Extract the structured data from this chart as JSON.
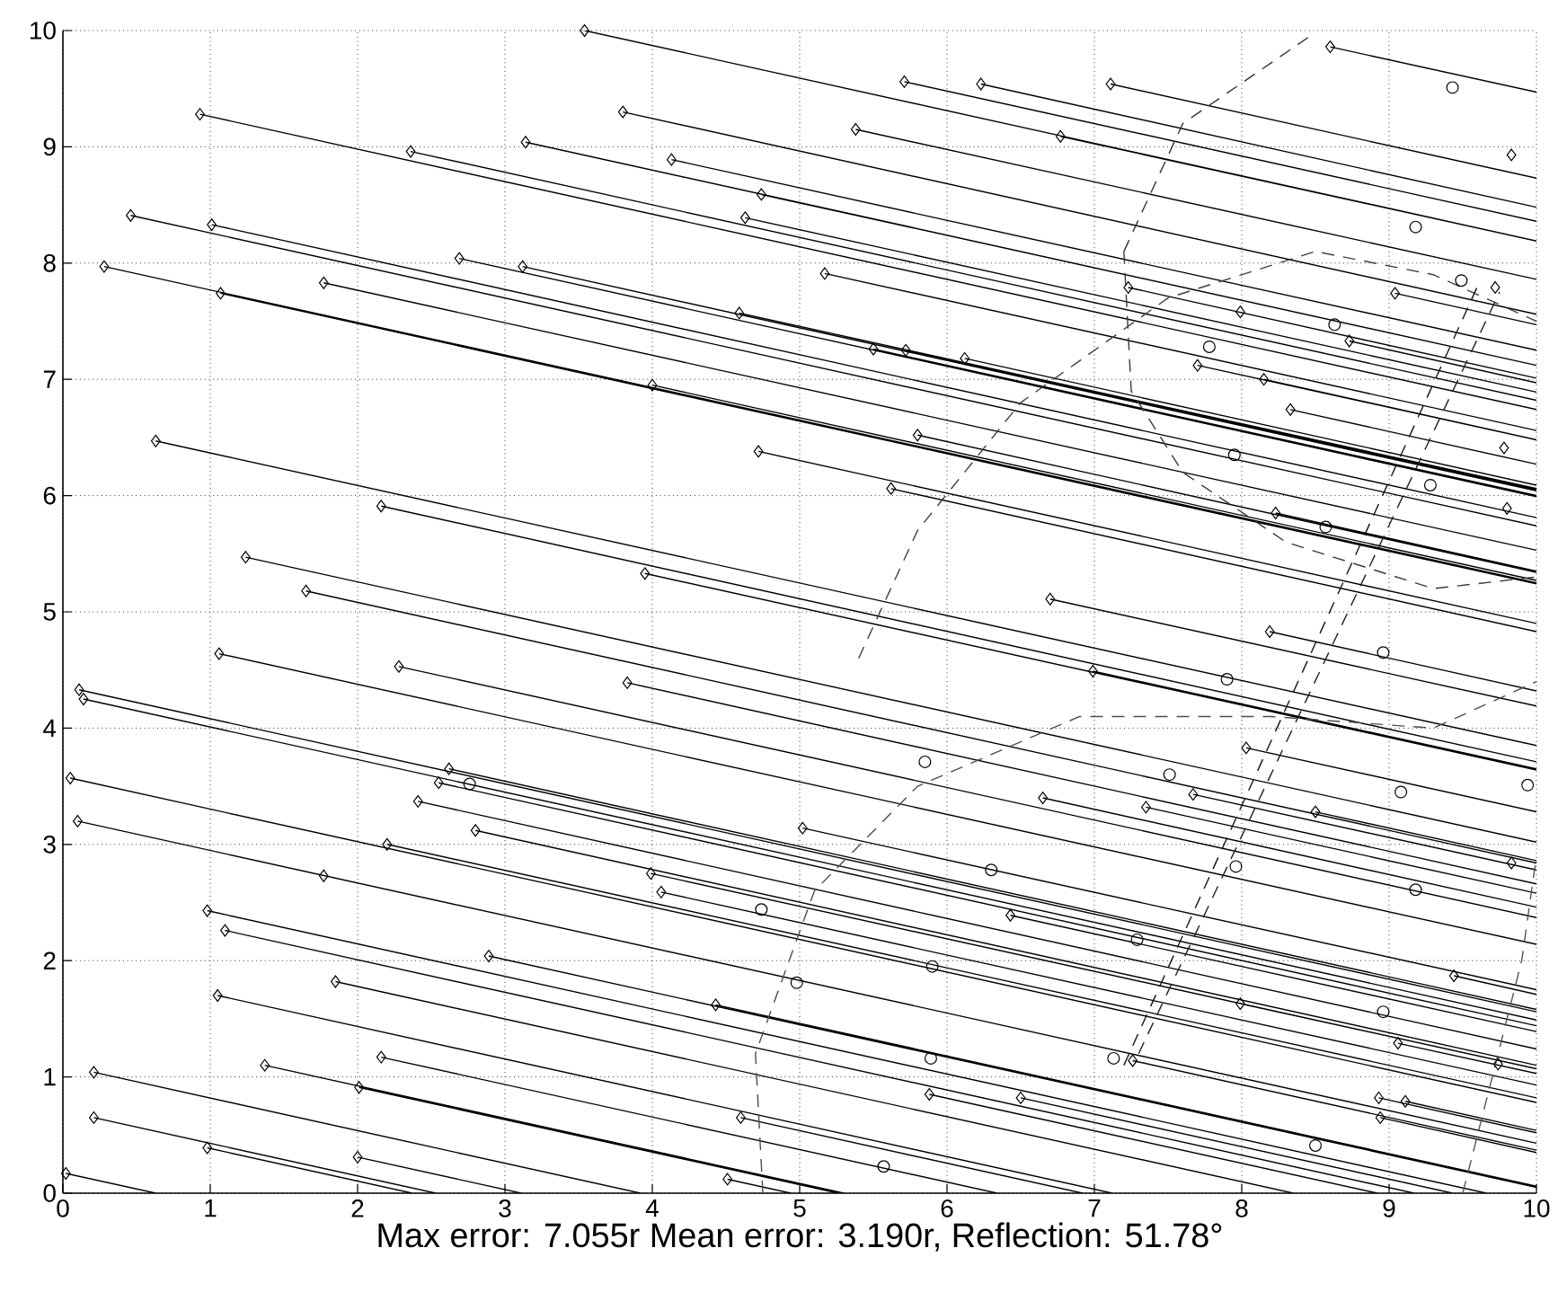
{
  "chart_data": {
    "type": "line",
    "xlabel": "Max error: 7.055r Mean error: 3.190r, Reflection: 51.78°",
    "xlim": [
      0,
      10
    ],
    "ylim": [
      0,
      10
    ],
    "xticks": [
      0,
      1,
      2,
      3,
      4,
      5,
      6,
      7,
      8,
      9,
      10
    ],
    "yticks": [
      0,
      1,
      2,
      3,
      4,
      5,
      6,
      7,
      8,
      9,
      10
    ],
    "grid": true,
    "series": [
      {
        "color": "#000000",
        "line_style": "solid",
        "x": [
          3.54,
          10,
          null,
          0.93,
          10,
          null,
          2.36,
          10,
          null,
          3.14,
          10,
          null,
          3.8,
          10,
          null,
          4.13,
          10,
          null,
          4.74,
          10,
          null,
          4.63,
          10,
          null,
          0.46,
          10,
          null,
          1.01,
          10,
          null,
          0.28,
          10,
          null,
          1.07,
          10,
          null,
          1.77,
          10,
          null,
          2.69,
          10,
          null,
          3.12,
          10,
          null,
          4.59,
          10,
          null,
          4.0,
          10,
          null,
          4.72,
          10,
          null,
          0.63,
          10,
          null,
          2.16,
          10,
          null,
          3.95,
          10,
          null,
          1.24,
          10,
          null,
          1.65,
          10,
          null,
          8.6,
          10,
          null,
          5.71,
          10,
          null,
          6.23,
          10,
          null,
          7.11,
          10,
          null,
          5.38,
          10,
          null,
          6.77,
          10,
          null,
          5.17,
          10,
          null,
          7.23,
          10,
          null,
          9.04,
          10,
          null,
          8.73,
          10,
          null,
          5.5,
          10,
          null,
          5.72,
          10,
          null,
          6.12,
          10,
          null,
          7.7,
          10,
          null,
          8.15,
          10,
          null,
          8.33,
          10,
          null,
          5.8,
          10,
          null,
          5.62,
          10,
          null,
          8.23,
          10,
          null,
          6.7,
          10,
          null,
          8.19,
          10,
          null,
          1.06,
          10,
          null,
          2.28,
          10,
          null,
          3.83,
          10,
          null,
          0.11,
          10,
          null,
          0.14,
          10,
          null,
          2.62,
          10,
          null,
          2.55,
          10,
          null,
          2.41,
          10,
          null,
          2.8,
          10,
          null,
          0.05,
          10,
          null,
          0.1,
          10,
          null,
          2.2,
          10,
          null,
          3.99,
          10,
          null,
          4.06,
          10,
          null,
          0.98,
          9.66,
          null,
          1.1,
          9.17,
          null,
          2.89,
          10,
          null,
          1.85,
          8.35,
          null,
          4.43,
          10,
          null,
          1.05,
          7.12,
          null,
          0.21,
          3.92,
          null,
          1.37,
          5.3,
          null,
          2.16,
          6.34,
          null,
          2.01,
          5.26,
          null,
          0.21,
          2.53,
          null,
          0.98,
          2.37,
          null,
          2.0,
          3.11,
          null,
          4.6,
          6.92,
          null,
          4.51,
          4.94,
          null,
          0.02,
          0.63,
          null,
          6.99,
          10,
          null,
          8.03,
          10,
          null,
          7.67,
          10,
          null,
          7.35,
          10,
          null,
          6.65,
          10,
          null,
          8.5,
          10,
          null,
          5.02,
          10,
          null,
          6.43,
          10,
          null,
          9.44,
          10,
          null,
          7.99,
          10,
          null,
          9.06,
          10,
          null,
          7.26,
          10,
          null,
          5.88,
          8.92,
          null,
          6.5,
          9.43,
          null,
          8.93,
          10,
          null,
          9.11,
          10,
          null,
          8.94,
          10
        ],
        "values": [
          10.0,
          8.19,
          null,
          9.28,
          6.74,
          null,
          8.96,
          6.82,
          null,
          9.04,
          7.12,
          null,
          9.3,
          7.56,
          null,
          8.89,
          7.25,
          null,
          8.59,
          7.12,
          null,
          8.39,
          6.89,
          null,
          8.41,
          5.74,
          null,
          8.33,
          5.81,
          null,
          7.97,
          5.25,
          null,
          7.74,
          5.24,
          null,
          7.83,
          5.53,
          null,
          8.04,
          5.99,
          null,
          7.97,
          6.04,
          null,
          7.57,
          6.06,
          null,
          6.95,
          5.27,
          null,
          6.38,
          4.9,
          null,
          6.47,
          3.85,
          null,
          5.91,
          3.71,
          null,
          5.33,
          3.64,
          null,
          5.47,
          3.02,
          null,
          5.18,
          2.84,
          null,
          9.86,
          9.47,
          null,
          9.56,
          8.36,
          null,
          9.54,
          8.48,
          null,
          9.54,
          8.73,
          null,
          9.15,
          7.86,
          null,
          9.09,
          8.19,
          null,
          7.91,
          6.56,
          null,
          7.79,
          7.01,
          null,
          7.74,
          7.47,
          null,
          7.33,
          6.97,
          null,
          7.26,
          6.0,
          null,
          7.25,
          6.05,
          null,
          7.18,
          6.09,
          null,
          7.12,
          6.48,
          null,
          7.0,
          6.48,
          null,
          6.74,
          6.27,
          null,
          6.52,
          5.34,
          null,
          6.06,
          4.83,
          null,
          5.85,
          5.35,
          null,
          5.11,
          4.19,
          null,
          4.83,
          4.32,
          null,
          4.64,
          2.14,
          null,
          4.53,
          2.37,
          null,
          4.39,
          2.66,
          null,
          4.33,
          1.56,
          null,
          4.25,
          1.49,
          null,
          3.65,
          1.58,
          null,
          3.53,
          1.44,
          null,
          3.37,
          1.24,
          null,
          3.12,
          1.1,
          null,
          3.57,
          0.78,
          null,
          3.2,
          0.43,
          null,
          3.0,
          0.82,
          null,
          2.75,
          1.07,
          null,
          2.59,
          0.93,
          null,
          2.43,
          0,
          null,
          2.26,
          0,
          null,
          2.04,
          0.05,
          null,
          1.82,
          0,
          null,
          1.62,
          0.06,
          null,
          1.7,
          0,
          null,
          1.04,
          0,
          null,
          1.1,
          0,
          null,
          1.17,
          0,
          null,
          0.91,
          0,
          null,
          0.65,
          0,
          null,
          0.39,
          0,
          null,
          0.31,
          0,
          null,
          0.65,
          0,
          null,
          0.12,
          0,
          null,
          0.17,
          0,
          null,
          4.49,
          3.65,
          null,
          3.83,
          3.28,
          null,
          3.43,
          2.78,
          null,
          3.32,
          2.58,
          null,
          3.4,
          2.46,
          null,
          3.28,
          2.86,
          null,
          3.14,
          1.75,
          null,
          2.39,
          1.39,
          null,
          1.87,
          1.71,
          null,
          1.63,
          1.07,
          null,
          1.29,
          1.03,
          null,
          1.14,
          0.37,
          null,
          0.85,
          0,
          null,
          0.82,
          0,
          null,
          0.82,
          0.52,
          null,
          0.79,
          0.54,
          null,
          0.65,
          0.35
        ]
      },
      {
        "type": "scatter",
        "color": "#000000",
        "marker": "diamond",
        "x": [
          3.54,
          0.93,
          2.36,
          3.14,
          3.8,
          4.13,
          4.74,
          4.63,
          0.46,
          1.01,
          0.28,
          1.07,
          1.77,
          2.69,
          3.12,
          4.59,
          4.0,
          4.72,
          0.63,
          2.16,
          3.95,
          1.24,
          1.65,
          8.6,
          5.71,
          6.23,
          7.11,
          9.83,
          5.38,
          6.77,
          5.17,
          7.23,
          9.04,
          9.72,
          7.99,
          8.73,
          5.5,
          5.72,
          6.12,
          7.7,
          8.15,
          8.33,
          9.78,
          5.8,
          5.62,
          9.8,
          8.23,
          6.7,
          8.19,
          1.06,
          2.28,
          3.83,
          0.11,
          0.14,
          2.62,
          2.55,
          2.41,
          2.8,
          0.05,
          0.1,
          2.2,
          1.77,
          3.99,
          4.06,
          0.98,
          1.1,
          2.89,
          1.85,
          4.43,
          1.05,
          0.21,
          1.37,
          2.16,
          2.01,
          0.21,
          0.98,
          2.0,
          4.6,
          4.51,
          0.02,
          6.99,
          8.03,
          7.67,
          7.35,
          6.65,
          8.5,
          5.02,
          9.83,
          6.43,
          9.44,
          7.99,
          9.06,
          9.74,
          7.26,
          5.88,
          6.5,
          8.93,
          9.11,
          8.94
        ],
        "values": [
          10.0,
          9.28,
          8.96,
          9.04,
          9.3,
          8.89,
          8.59,
          8.39,
          8.41,
          8.33,
          7.97,
          7.74,
          7.83,
          8.04,
          7.97,
          7.57,
          6.95,
          6.38,
          6.47,
          5.91,
          5.33,
          5.47,
          5.18,
          9.86,
          9.56,
          9.54,
          9.54,
          8.93,
          9.15,
          9.09,
          7.91,
          7.79,
          7.74,
          7.79,
          7.58,
          7.33,
          7.26,
          7.25,
          7.18,
          7.12,
          7.0,
          6.74,
          6.41,
          6.52,
          6.06,
          5.89,
          5.85,
          5.11,
          4.83,
          4.64,
          4.53,
          4.39,
          4.33,
          4.25,
          3.65,
          3.53,
          3.37,
          3.12,
          3.57,
          3.2,
          3.0,
          2.73,
          2.75,
          2.59,
          2.43,
          2.26,
          2.04,
          1.82,
          1.62,
          1.7,
          1.04,
          1.1,
          1.17,
          0.91,
          0.65,
          0.39,
          0.31,
          0.65,
          0.12,
          0.17,
          4.49,
          3.83,
          3.43,
          3.32,
          3.4,
          3.28,
          3.14,
          2.84,
          2.39,
          1.87,
          1.63,
          1.29,
          1.11,
          1.14,
          0.85,
          0.82,
          0.82,
          0.79,
          0.65
        ]
      },
      {
        "type": "scatter",
        "color": "#000000",
        "marker": "circle",
        "x": [
          9.43,
          9.18,
          9.49,
          8.63,
          7.78,
          7.95,
          9.28,
          8.57,
          2.76,
          4.74,
          8.96,
          7.9,
          5.85,
          7.51,
          9.08,
          9.94,
          7.96,
          6.3,
          9.18,
          7.29,
          5.9,
          4.98,
          8.96,
          7.13,
          5.89,
          8.5,
          5.57
        ],
        "values": [
          9.51,
          8.31,
          7.85,
          7.47,
          7.28,
          6.35,
          6.09,
          5.73,
          3.52,
          2.44,
          4.65,
          4.42,
          3.71,
          3.6,
          3.45,
          3.51,
          2.81,
          2.78,
          2.61,
          2.18,
          1.95,
          1.81,
          1.56,
          1.16,
          1.16,
          0.41,
          0.23
        ]
      },
      {
        "color": "#333333",
        "line_style": "dashed",
        "x": [
          7.2,
          7.6,
          8.45
        ],
        "values": [
          8.1,
          9.2,
          9.94
        ]
      },
      {
        "color": "#3a3a3a",
        "line_style": "dashed",
        "x": [
          7.2,
          7.25,
          7.6,
          8.3,
          9.3,
          10
        ],
        "values": [
          8.1,
          6.9,
          6.2,
          5.6,
          5.2,
          5.3
        ]
      },
      {
        "color": "#404040",
        "line_style": "dashed",
        "x": [
          5.4,
          5.8,
          6.5,
          7.5,
          8.5,
          9.3,
          10
        ],
        "values": [
          4.6,
          5.7,
          6.8,
          7.7,
          8.1,
          7.9,
          7.5
        ]
      },
      {
        "color": "#4d4d4d",
        "line_style": "dashed",
        "x": [
          4.75,
          4.7,
          5.1,
          5.8,
          6.9,
          8.2,
          9.3,
          10
        ],
        "values": [
          0,
          1.2,
          2.6,
          3.5,
          4.1,
          4.1,
          4.0,
          4.4
        ]
      },
      {
        "color": "#545454",
        "line_style": "dashed",
        "x": [
          9.5,
          9.6,
          9.9,
          10
        ],
        "values": [
          0,
          0.5,
          2.0,
          2.9
        ]
      },
      {
        "color": "#141414",
        "line_style": "dashed",
        "x": [
          7.2,
          9.6
        ],
        "values": [
          1.1,
          7.8
        ]
      },
      {
        "color": "#1f1f1f",
        "line_style": "dashed",
        "x": [
          7.3,
          9.75
        ],
        "values": [
          1.2,
          7.75
        ]
      }
    ]
  }
}
